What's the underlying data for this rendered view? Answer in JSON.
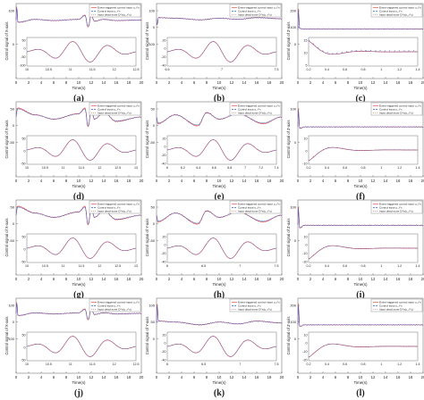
{
  "series_colors": {
    "event": "#e05050",
    "control": "#3a5fd0",
    "deadzone": "#e08888",
    "axis": "#555555",
    "frame": "#777777"
  },
  "legend_labels": [
    "Event-triggered control input u_i^x",
    "Control input u_i^x",
    "Input dead-zone D^x(u_i^x)"
  ],
  "panels": [
    {
      "label": "(a)",
      "ylabel": "Control signal of X-axis",
      "xlabel": "Time(s)",
      "xticks": [
        "0",
        "2",
        "4",
        "6",
        "8",
        "10",
        "12",
        "14",
        "16",
        "18",
        "20"
      ],
      "yticks": [
        "100",
        "0"
      ],
      "inset_xticks": [
        "10",
        "10.5",
        "11",
        "11.5",
        "12",
        "12.5"
      ],
      "inset_yticks": [
        "50",
        "0",
        "-50",
        "-100"
      ]
    },
    {
      "label": "(b)",
      "ylabel": "Control signal of Y-axis",
      "xlabel": "Time(s)",
      "xticks": [
        "0",
        "2",
        "4",
        "6",
        "8",
        "10",
        "12",
        "14",
        "16",
        "18",
        "20"
      ],
      "yticks": [
        "100",
        "0",
        "-100"
      ],
      "inset_xticks": [
        "6.5",
        "7",
        "7.5"
      ],
      "inset_yticks": [
        "20",
        "0",
        "-20",
        "-40"
      ]
    },
    {
      "label": "(c)",
      "ylabel": "Control signal of Z-axis",
      "xlabel": "Time(s)",
      "xticks": [
        "0",
        "2",
        "4",
        "6",
        "8",
        "10",
        "12",
        "14",
        "16",
        "18",
        "20"
      ],
      "yticks": [
        "200",
        "100",
        "0"
      ],
      "inset_xticks": [
        "0.2",
        "0.4",
        "0.6",
        "0.8",
        "1",
        "1.2",
        "1.4"
      ],
      "inset_yticks": [
        "15",
        "10",
        "5"
      ]
    },
    {
      "label": "(d)",
      "ylabel": "Control signal of X-axis",
      "xlabel": "Time(s)",
      "xticks": [
        "0",
        "2",
        "4",
        "6",
        "8",
        "10",
        "12",
        "14",
        "16",
        "18",
        "20"
      ],
      "yticks": [
        "50",
        "0",
        "-50"
      ],
      "inset_xticks": [
        "10",
        "10.5",
        "11",
        "11.5",
        "12",
        "12.5",
        "13"
      ],
      "inset_yticks": [
        "50",
        "0",
        "-50"
      ]
    },
    {
      "label": "(e)",
      "ylabel": "Control signal of Y-axis",
      "xlabel": "Time(s)",
      "xticks": [
        "0",
        "2",
        "4",
        "6",
        "8",
        "10",
        "12",
        "14",
        "16",
        "18",
        "20"
      ],
      "yticks": [
        "50",
        "0",
        "-50"
      ],
      "inset_xticks": [
        "6",
        "6.2",
        "6.4",
        "6.6",
        "6.8",
        "7",
        "7.2",
        "7.4"
      ],
      "inset_yticks": [
        "20",
        "0",
        "-20",
        "-40"
      ]
    },
    {
      "label": "(f)",
      "ylabel": "Control signal of Z-axis",
      "xlabel": "Time(s)",
      "xticks": [
        "0",
        "2",
        "4",
        "6",
        "8",
        "10",
        "12",
        "14",
        "16",
        "18",
        "20"
      ],
      "yticks": [
        "100",
        "0"
      ],
      "inset_xticks": [
        "0.2",
        "0.4",
        "0.6",
        "0.8",
        "1",
        "1.2",
        "1.4"
      ],
      "inset_yticks": [
        "10",
        "0",
        "-10"
      ]
    },
    {
      "label": "(g)",
      "ylabel": "Control signal of X-axis",
      "xlabel": "Time(s)",
      "xticks": [
        "0",
        "2",
        "4",
        "6",
        "8",
        "10",
        "12",
        "14",
        "16",
        "18",
        "20"
      ],
      "yticks": [
        "50",
        "0",
        "-50"
      ],
      "inset_xticks": [
        "10",
        "10.5",
        "11",
        "11.5",
        "12",
        "12.5",
        "13"
      ],
      "inset_yticks": [
        "50",
        "0",
        "-50"
      ]
    },
    {
      "label": "(h)",
      "ylabel": "Control signal of Y-axis",
      "xlabel": "Time(s)",
      "xticks": [
        "0",
        "2",
        "4",
        "6",
        "8",
        "10",
        "12",
        "14",
        "16",
        "18",
        "20"
      ],
      "yticks": [
        "50",
        "0",
        "-50"
      ],
      "inset_xticks": [
        "6",
        "6.5",
        "7",
        "7.5"
      ],
      "inset_yticks": [
        "20",
        "0",
        "-20",
        "-40"
      ]
    },
    {
      "label": "(i)",
      "ylabel": "Control signal of Z-axis",
      "xlabel": "Time(s)",
      "xticks": [
        "0",
        "2",
        "4",
        "6",
        "8",
        "10",
        "12",
        "14",
        "16",
        "18",
        "20"
      ],
      "yticks": [
        "100",
        "0"
      ],
      "inset_xticks": [
        "0.2",
        "0.4",
        "0.6",
        "0.8",
        "1",
        "1.2",
        "1.4"
      ],
      "inset_yticks": [
        "10",
        "0",
        "-10",
        "-20"
      ]
    },
    {
      "label": "(j)",
      "ylabel": "Control signal of X-axis",
      "xlabel": "Time(s)",
      "xticks": [
        "0",
        "2",
        "4",
        "6",
        "8",
        "10",
        "12",
        "14",
        "16",
        "18",
        "20"
      ],
      "yticks": [
        "100",
        "0",
        "-100"
      ],
      "inset_xticks": [
        "10",
        "10.5",
        "11",
        "11.5",
        "12",
        "12.5"
      ],
      "inset_yticks": [
        "50",
        "0",
        "-50"
      ]
    },
    {
      "label": "(k)",
      "ylabel": "Control signal of Y-axis",
      "xlabel": "Time(s)",
      "xticks": [
        "0",
        "2",
        "4",
        "6",
        "8",
        "10",
        "12",
        "14",
        "16",
        "18",
        "20"
      ],
      "yticks": [
        "100",
        "50",
        "0"
      ],
      "inset_xticks": [
        "6",
        "6.5",
        "7",
        "7.5"
      ],
      "inset_yticks": [
        "20",
        "0",
        "-20",
        "-40"
      ]
    },
    {
      "label": "(l)",
      "ylabel": "Control signal of Z-axis",
      "xlabel": "Time(s)",
      "xticks": [
        "0",
        "2",
        "4",
        "6",
        "8",
        "10",
        "12",
        "14",
        "16",
        "18",
        "20"
      ],
      "yticks": [
        "200",
        "100",
        "0"
      ],
      "inset_xticks": [
        "0.2",
        "0.4",
        "0.6",
        "0.8",
        "1",
        "1.2",
        "1.4"
      ],
      "inset_yticks": [
        "10",
        "0",
        "-10",
        "-20"
      ]
    }
  ],
  "chart_data": [
    {
      "type": "line",
      "panel": "(a)",
      "xlabel": "Time(s)",
      "ylabel": "Control signal of X-axis",
      "xlim": [
        0,
        20
      ],
      "ylim": [
        -100,
        120
      ],
      "series": [
        {
          "name": "Event-triggered control input u_i^x",
          "x": [
            0,
            0.1,
            0.3,
            3,
            6,
            10,
            11,
            11.5,
            12,
            12.5,
            14,
            16,
            20
          ],
          "y": [
            0,
            110,
            -20,
            5,
            -5,
            5,
            40,
            -60,
            40,
            -10,
            5,
            -5,
            0
          ]
        }
      ],
      "inset": {
        "xlim": [
          10,
          12.8
        ],
        "ylim": [
          -100,
          60
        ]
      }
    },
    {
      "type": "line",
      "panel": "(b)",
      "xlabel": "Time(s)",
      "ylabel": "Control signal of Y-axis",
      "xlim": [
        0,
        20
      ],
      "ylim": [
        -120,
        120
      ],
      "series": [
        {
          "name": "Event-triggered control input u_i^y",
          "x": [
            0,
            0.1,
            0.3,
            3,
            7,
            10,
            13,
            16,
            20
          ],
          "y": [
            0,
            -60,
            10,
            5,
            -10,
            5,
            -5,
            10,
            0
          ]
        }
      ],
      "inset": {
        "xlim": [
          6.2,
          7.6
        ],
        "ylim": [
          -45,
          25
        ]
      }
    },
    {
      "type": "line",
      "panel": "(c)",
      "xlabel": "Time(s)",
      "ylabel": "Control signal of Z-axis",
      "xlim": [
        0,
        20
      ],
      "ylim": [
        -20,
        220
      ],
      "series": [
        {
          "name": "Event-triggered control input u_i^z",
          "x": [
            0,
            0.05,
            0.3,
            1,
            20
          ],
          "y": [
            0,
            200,
            12,
            9,
            9
          ]
        }
      ],
      "inset": {
        "xlim": [
          0.2,
          1.5
        ],
        "ylim": [
          5,
          16
        ]
      }
    },
    {
      "type": "line",
      "panel": "(d)",
      "xlabel": "Time(s)",
      "ylabel": "Control signal of X-axis",
      "xlim": [
        0,
        20
      ],
      "ylim": [
        -60,
        60
      ],
      "series": [
        {
          "name": "Event-triggered control input u_i^x",
          "x": [
            0,
            0.2,
            3,
            6,
            10,
            11,
            11.5,
            12,
            12.5,
            14,
            16,
            20
          ],
          "y": [
            0,
            40,
            10,
            -10,
            15,
            40,
            -45,
            35,
            -10,
            20,
            -20,
            0
          ]
        }
      ],
      "inset": {
        "xlim": [
          10,
          13.2
        ],
        "ylim": [
          -60,
          60
        ]
      }
    },
    {
      "type": "line",
      "panel": "(e)",
      "xlabel": "Time(s)",
      "ylabel": "Control signal of Y-axis",
      "xlim": [
        0,
        20
      ],
      "ylim": [
        -60,
        60
      ],
      "series": [
        {
          "name": "Event-triggered control input u_i^y",
          "x": [
            0,
            0.2,
            3,
            6.6,
            8,
            10,
            13,
            17,
            20
          ],
          "y": [
            0,
            -30,
            10,
            -40,
            20,
            -10,
            15,
            -30,
            0
          ]
        }
      ],
      "inset": {
        "xlim": [
          6,
          7.5
        ],
        "ylim": [
          -45,
          25
        ]
      }
    },
    {
      "type": "line",
      "panel": "(f)",
      "xlabel": "Time(s)",
      "ylabel": "Control signal of Z-axis",
      "xlim": [
        0,
        20
      ],
      "ylim": [
        -20,
        120
      ],
      "series": [
        {
          "name": "Event-triggered control input u_i^z",
          "x": [
            0,
            0.05,
            0.3,
            1,
            20
          ],
          "y": [
            0,
            100,
            -10,
            -2,
            -2
          ]
        }
      ],
      "inset": {
        "xlim": [
          0.2,
          1.5
        ],
        "ylim": [
          -15,
          12
        ]
      }
    },
    {
      "type": "line",
      "panel": "(g)",
      "xlabel": "Time(s)",
      "ylabel": "Control signal of X-axis",
      "xlim": [
        0,
        20
      ],
      "ylim": [
        -60,
        60
      ],
      "series": [
        {
          "name": "Event-triggered control input u_i^x",
          "x": [
            0,
            0.2,
            3,
            6,
            10,
            11,
            11.5,
            12,
            12.5,
            14,
            16,
            20
          ],
          "y": [
            0,
            40,
            10,
            -10,
            15,
            40,
            -45,
            35,
            -10,
            20,
            -20,
            0
          ]
        }
      ],
      "inset": {
        "xlim": [
          10,
          13.2
        ],
        "ylim": [
          -60,
          60
        ]
      }
    },
    {
      "type": "line",
      "panel": "(h)",
      "xlabel": "Time(s)",
      "ylabel": "Control signal of Y-axis",
      "xlim": [
        0,
        20
      ],
      "ylim": [
        -60,
        60
      ],
      "series": [
        {
          "name": "Event-triggered control input u_i^y",
          "x": [
            0,
            0.2,
            3,
            6.6,
            8,
            10,
            13,
            17,
            20
          ],
          "y": [
            0,
            -30,
            10,
            -40,
            20,
            -10,
            15,
            -30,
            0
          ]
        }
      ],
      "inset": {
        "xlim": [
          6,
          7.8
        ],
        "ylim": [
          -45,
          25
        ]
      }
    },
    {
      "type": "line",
      "panel": "(i)",
      "xlabel": "Time(s)",
      "ylabel": "Control signal of Z-axis",
      "xlim": [
        0,
        20
      ],
      "ylim": [
        -20,
        120
      ],
      "series": [
        {
          "name": "Event-triggered control input u_i^z",
          "x": [
            0,
            0.05,
            0.3,
            1,
            20
          ],
          "y": [
            0,
            100,
            -18,
            -3,
            -3
          ]
        }
      ],
      "inset": {
        "xlim": [
          0.2,
          1.5
        ],
        "ylim": [
          -22,
          12
        ]
      }
    },
    {
      "type": "line",
      "panel": "(j)",
      "xlabel": "Time(s)",
      "ylabel": "Control signal of X-axis",
      "xlim": [
        0,
        20
      ],
      "ylim": [
        -120,
        120
      ],
      "series": [
        {
          "name": "Event-triggered control input u_i^x",
          "x": [
            0,
            0.1,
            0.3,
            3,
            6,
            10,
            11,
            11.5,
            12,
            12.5,
            14,
            16,
            20
          ],
          "y": [
            0,
            100,
            -20,
            5,
            -5,
            5,
            40,
            -60,
            40,
            -10,
            5,
            -5,
            0
          ]
        }
      ],
      "inset": {
        "xlim": [
          10,
          12.8
        ],
        "ylim": [
          -70,
          60
        ]
      }
    },
    {
      "type": "line",
      "panel": "(k)",
      "xlabel": "Time(s)",
      "ylabel": "Control signal of Y-axis",
      "xlim": [
        0,
        20
      ],
      "ylim": [
        -20,
        120
      ],
      "series": [
        {
          "name": "Event-triggered control input u_i^y",
          "x": [
            0,
            0.1,
            0.3,
            3,
            7,
            10,
            13,
            16,
            20
          ],
          "y": [
            0,
            100,
            10,
            5,
            -10,
            5,
            -5,
            10,
            0
          ]
        }
      ],
      "inset": {
        "xlim": [
          6,
          7.8
        ],
        "ylim": [
          -45,
          25
        ]
      }
    },
    {
      "type": "line",
      "panel": "(l)",
      "xlabel": "Time(s)",
      "ylabel": "Control signal of Z-axis",
      "xlim": [
        0,
        20
      ],
      "ylim": [
        -20,
        220
      ],
      "series": [
        {
          "name": "Event-triggered control input u_i^z",
          "x": [
            0,
            0.05,
            0.3,
            1,
            20
          ],
          "y": [
            0,
            200,
            -18,
            -3,
            -3
          ]
        }
      ],
      "inset": {
        "xlim": [
          0.2,
          1.5
        ],
        "ylim": [
          -22,
          12
        ]
      }
    }
  ]
}
